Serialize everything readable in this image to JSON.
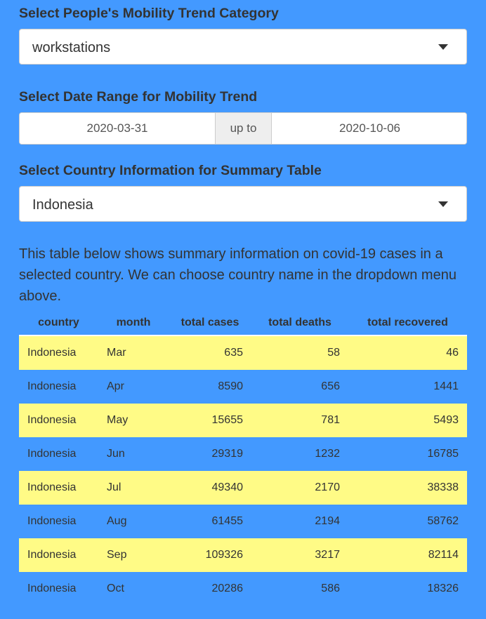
{
  "mobility": {
    "label": "Select People's Mobility Trend Category",
    "selected": "workstations"
  },
  "daterange": {
    "label": "Select Date Range for Mobility Trend",
    "start": "2020-03-31",
    "separator": "up to",
    "end": "2020-10-06"
  },
  "country": {
    "label": "Select Country Information for Summary Table",
    "selected": "Indonesia"
  },
  "description": "This table below shows summary information on covid-19 cases in a selected country. We can choose country name in the dropdown menu above.",
  "table": {
    "columns": [
      "country",
      "month",
      "total cases",
      "total deaths",
      "total recovered"
    ],
    "rows": [
      [
        "Indonesia",
        "Mar",
        "635",
        "58",
        "46"
      ],
      [
        "Indonesia",
        "Apr",
        "8590",
        "656",
        "1441"
      ],
      [
        "Indonesia",
        "May",
        "15655",
        "781",
        "5493"
      ],
      [
        "Indonesia",
        "Jun",
        "29319",
        "1232",
        "16785"
      ],
      [
        "Indonesia",
        "Jul",
        "49340",
        "2170",
        "38338"
      ],
      [
        "Indonesia",
        "Aug",
        "61455",
        "2194",
        "58762"
      ],
      [
        "Indonesia",
        "Sep",
        "109326",
        "3217",
        "82114"
      ],
      [
        "Indonesia",
        "Oct",
        "20286",
        "586",
        "18326"
      ]
    ]
  },
  "colors": {
    "background": "#4399FF",
    "row_highlight": "#FFFB86"
  }
}
